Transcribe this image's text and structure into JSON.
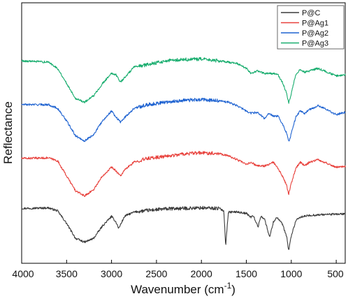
{
  "chart_data": {
    "type": "line",
    "title": "",
    "xlabel_main": "Wavenumber (cm",
    "xlabel_sup": "-1",
    "xlabel_close": ")",
    "ylabel": "Reflectance",
    "xlim": [
      4000,
      400
    ],
    "x_reversed": true,
    "xticks": [
      4000,
      3500,
      3000,
      2500,
      2000,
      1500,
      1000,
      500
    ],
    "y_ticks_shown": false,
    "legend_position": "top-right",
    "grid": false,
    "series": [
      {
        "name": "P@C",
        "color": "#3a3a3a",
        "points": [
          [
            4000,
            0.2
          ],
          [
            3700,
            0.202
          ],
          [
            3600,
            0.19
          ],
          [
            3500,
            0.14
          ],
          [
            3400,
            0.08
          ],
          [
            3300,
            0.065
          ],
          [
            3200,
            0.08
          ],
          [
            3100,
            0.13
          ],
          [
            3000,
            0.168
          ],
          [
            2950,
            0.145
          ],
          [
            2920,
            0.12
          ],
          [
            2880,
            0.15
          ],
          [
            2850,
            0.17
          ],
          [
            2750,
            0.185
          ],
          [
            2600,
            0.192
          ],
          [
            2400,
            0.198
          ],
          [
            2200,
            0.2
          ],
          [
            2000,
            0.202
          ],
          [
            1800,
            0.2
          ],
          [
            1750,
            0.19
          ],
          [
            1730,
            0.05
          ],
          [
            1715,
            0.12
          ],
          [
            1700,
            0.185
          ],
          [
            1600,
            0.186
          ],
          [
            1500,
            0.18
          ],
          [
            1450,
            0.165
          ],
          [
            1420,
            0.17
          ],
          [
            1370,
            0.125
          ],
          [
            1340,
            0.168
          ],
          [
            1300,
            0.16
          ],
          [
            1240,
            0.085
          ],
          [
            1200,
            0.145
          ],
          [
            1160,
            0.165
          ],
          [
            1100,
            0.138
          ],
          [
            1050,
            0.085
          ],
          [
            1030,
            0.03
          ],
          [
            1000,
            0.09
          ],
          [
            950,
            0.15
          ],
          [
            900,
            0.165
          ],
          [
            800,
            0.172
          ],
          [
            600,
            0.176
          ],
          [
            400,
            0.178
          ]
        ]
      },
      {
        "name": "P@Ag1",
        "color": "#e8413c",
        "points": [
          [
            4000,
            0.4
          ],
          [
            3700,
            0.402
          ],
          [
            3600,
            0.39
          ],
          [
            3500,
            0.33
          ],
          [
            3400,
            0.27
          ],
          [
            3300,
            0.25
          ],
          [
            3200,
            0.275
          ],
          [
            3100,
            0.33
          ],
          [
            3000,
            0.365
          ],
          [
            2950,
            0.35
          ],
          [
            2900,
            0.33
          ],
          [
            2850,
            0.355
          ],
          [
            2750,
            0.385
          ],
          [
            2600,
            0.4
          ],
          [
            2400,
            0.408
          ],
          [
            2200,
            0.418
          ],
          [
            2000,
            0.422
          ],
          [
            1800,
            0.42
          ],
          [
            1700,
            0.41
          ],
          [
            1600,
            0.395
          ],
          [
            1500,
            0.375
          ],
          [
            1450,
            0.385
          ],
          [
            1380,
            0.37
          ],
          [
            1300,
            0.37
          ],
          [
            1250,
            0.375
          ],
          [
            1200,
            0.385
          ],
          [
            1150,
            0.36
          ],
          [
            1100,
            0.33
          ],
          [
            1050,
            0.29
          ],
          [
            1030,
            0.255
          ],
          [
            1000,
            0.3
          ],
          [
            950,
            0.36
          ],
          [
            900,
            0.385
          ],
          [
            850,
            0.37
          ],
          [
            800,
            0.385
          ],
          [
            700,
            0.395
          ],
          [
            600,
            0.38
          ],
          [
            500,
            0.365
          ],
          [
            400,
            0.368
          ]
        ]
      },
      {
        "name": "P@Ag2",
        "color": "#1f63d1",
        "points": [
          [
            4000,
            0.615
          ],
          [
            3700,
            0.615
          ],
          [
            3600,
            0.6
          ],
          [
            3500,
            0.55
          ],
          [
            3400,
            0.49
          ],
          [
            3300,
            0.47
          ],
          [
            3200,
            0.495
          ],
          [
            3100,
            0.55
          ],
          [
            3000,
            0.59
          ],
          [
            2950,
            0.565
          ],
          [
            2900,
            0.545
          ],
          [
            2850,
            0.565
          ],
          [
            2750,
            0.6
          ],
          [
            2600,
            0.615
          ],
          [
            2400,
            0.625
          ],
          [
            2200,
            0.632
          ],
          [
            2000,
            0.635
          ],
          [
            1800,
            0.63
          ],
          [
            1700,
            0.625
          ],
          [
            1600,
            0.61
          ],
          [
            1500,
            0.59
          ],
          [
            1450,
            0.58
          ],
          [
            1380,
            0.585
          ],
          [
            1300,
            0.56
          ],
          [
            1250,
            0.58
          ],
          [
            1200,
            0.57
          ],
          [
            1150,
            0.57
          ],
          [
            1100,
            0.54
          ],
          [
            1050,
            0.5
          ],
          [
            1025,
            0.465
          ],
          [
            1000,
            0.5
          ],
          [
            950,
            0.565
          ],
          [
            900,
            0.59
          ],
          [
            850,
            0.58
          ],
          [
            800,
            0.595
          ],
          [
            700,
            0.61
          ],
          [
            600,
            0.595
          ],
          [
            500,
            0.575
          ],
          [
            400,
            0.585
          ]
        ]
      },
      {
        "name": "P@Ag3",
        "color": "#18ad6e",
        "points": [
          [
            4000,
            0.79
          ],
          [
            3700,
            0.785
          ],
          [
            3600,
            0.76
          ],
          [
            3500,
            0.7
          ],
          [
            3400,
            0.64
          ],
          [
            3300,
            0.625
          ],
          [
            3200,
            0.65
          ],
          [
            3100,
            0.7
          ],
          [
            3000,
            0.74
          ],
          [
            2950,
            0.735
          ],
          [
            2900,
            0.705
          ],
          [
            2850,
            0.725
          ],
          [
            2750,
            0.765
          ],
          [
            2600,
            0.775
          ],
          [
            2400,
            0.79
          ],
          [
            2200,
            0.795
          ],
          [
            2000,
            0.797
          ],
          [
            1800,
            0.79
          ],
          [
            1700,
            0.785
          ],
          [
            1600,
            0.78
          ],
          [
            1500,
            0.76
          ],
          [
            1450,
            0.74
          ],
          [
            1380,
            0.75
          ],
          [
            1300,
            0.74
          ],
          [
            1200,
            0.74
          ],
          [
            1150,
            0.735
          ],
          [
            1100,
            0.705
          ],
          [
            1050,
            0.66
          ],
          [
            1030,
            0.62
          ],
          [
            1000,
            0.66
          ],
          [
            950,
            0.735
          ],
          [
            900,
            0.755
          ],
          [
            850,
            0.745
          ],
          [
            800,
            0.75
          ],
          [
            700,
            0.76
          ],
          [
            600,
            0.745
          ],
          [
            500,
            0.73
          ],
          [
            400,
            0.735
          ]
        ]
      }
    ]
  }
}
